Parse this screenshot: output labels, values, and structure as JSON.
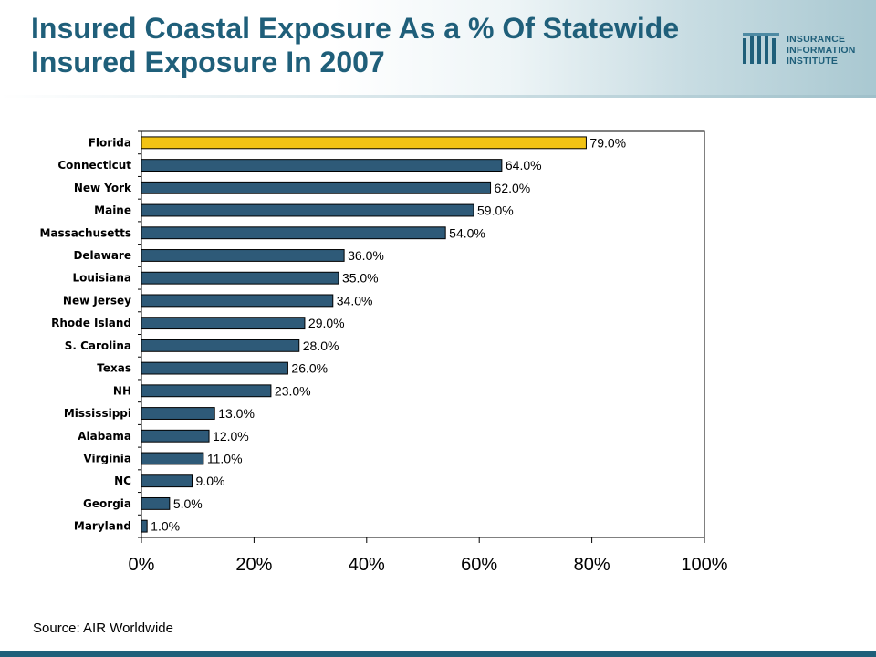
{
  "title": {
    "line1": "Insured Coastal Exposure As a % Of Statewide",
    "line2": "Insured Exposure In 2007"
  },
  "logo": {
    "line1": "INSURANCE",
    "line2": "INFORMATION",
    "line3": "INSTITUTE"
  },
  "source": "Source: AIR Worldwide",
  "colors": {
    "title": "#1f5f7a",
    "bar": "#2e5a78",
    "highlight": "#f2c314",
    "footer": "#1f5f7a"
  },
  "chart_data": {
    "type": "bar",
    "orientation": "horizontal",
    "title": "",
    "xlabel": "",
    "ylabel": "",
    "categories": [
      "Florida",
      "Connecticut",
      "New York",
      "Maine",
      "Massachusetts",
      "Delaware",
      "Louisiana",
      "New Jersey",
      "Rhode Island",
      "S. Carolina",
      "Texas",
      "NH",
      "Mississippi",
      "Alabama",
      "Virginia",
      "NC",
      "Georgia",
      "Maryland"
    ],
    "values": [
      79,
      64,
      62,
      59,
      54,
      36,
      35,
      34,
      29,
      28,
      26,
      23,
      13,
      12,
      11,
      9,
      5,
      1
    ],
    "value_labels": [
      "79.0%",
      "64.0%",
      "62.0%",
      "59.0%",
      "54.0%",
      "36.0%",
      "35.0%",
      "34.0%",
      "29.0%",
      "28.0%",
      "26.0%",
      "23.0%",
      "13.0%",
      "12.0%",
      "11.0%",
      "9.0%",
      "5.0%",
      "1.0%"
    ],
    "highlighted_category": "Florida",
    "xlim": [
      0,
      100
    ],
    "x_ticks": [
      0,
      20,
      40,
      60,
      80,
      100
    ],
    "x_tick_labels": [
      "0%",
      "20%",
      "40%",
      "60%",
      "80%",
      "100%"
    ],
    "grid": false,
    "legend": "none"
  }
}
